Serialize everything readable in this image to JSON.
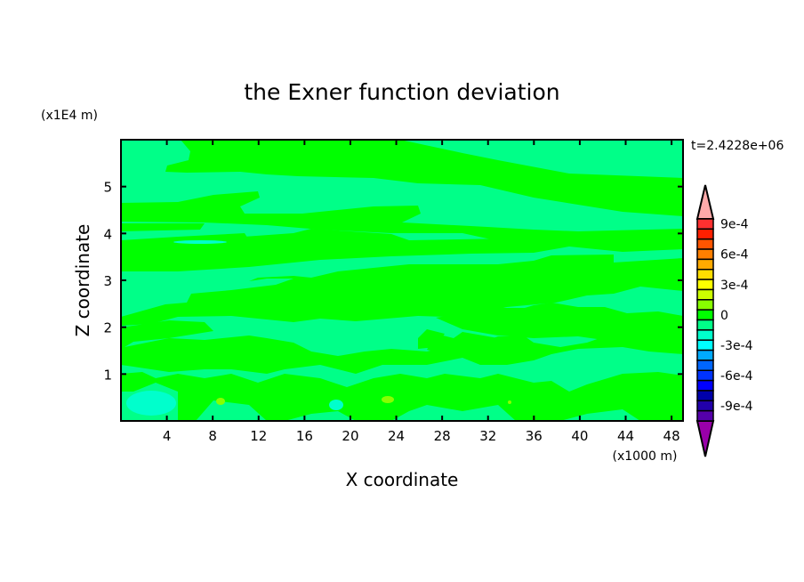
{
  "chart_data": {
    "type": "heatmap",
    "subtype": "filled-contour",
    "title": "the Exner function deviation",
    "xlabel": "X coordinate",
    "ylabel": "Z coordinate",
    "x_unit": "(x1000 m)",
    "y_unit": "(x1E4 m)",
    "time_label": "t=2.4228e+06",
    "xlim": [
      0,
      49
    ],
    "ylim": [
      0,
      6
    ],
    "x_ticks": [
      4,
      8,
      12,
      16,
      20,
      24,
      28,
      32,
      36,
      40,
      44,
      48
    ],
    "y_ticks": [
      1,
      2,
      3,
      4,
      5
    ],
    "grid": false,
    "field_description_levels": "values mostly between -1e-4 and 1e-4 (two green shades), with small cyan patches near -2e-4 and yellow-green patches near 2e-4 at low Z",
    "colorbar": {
      "position": "right",
      "labels": [
        "9e-4",
        "6e-4",
        "3e-4",
        "0",
        "-3e-4",
        "-6e-4",
        "-9e-4"
      ],
      "label_values": [
        0.0009,
        0.0006,
        0.0003,
        0,
        -0.0003,
        -0.0006,
        -0.0009
      ],
      "extend_top_color": "#ffaaaa",
      "extend_bottom_color": "#9900aa",
      "colors_top_to_bottom": [
        "#ff3030",
        "#ff2000",
        "#ff5500",
        "#ff7f00",
        "#ffaa00",
        "#ffdd00",
        "#ffff00",
        "#ccff00",
        "#88ff00",
        "#00ff00",
        "#00ff88",
        "#00ffcc",
        "#00ffff",
        "#00aaff",
        "#0066ff",
        "#0033ff",
        "#0000ff",
        "#0000aa",
        "#2200aa",
        "#5500aa"
      ]
    }
  }
}
